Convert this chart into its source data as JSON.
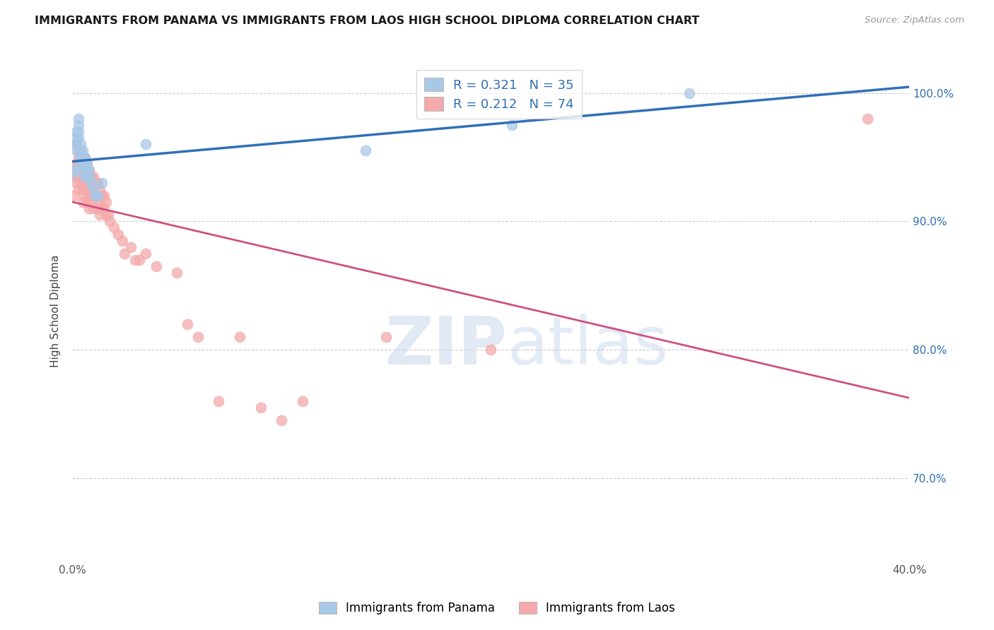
{
  "title": "IMMIGRANTS FROM PANAMA VS IMMIGRANTS FROM LAOS HIGH SCHOOL DIPLOMA CORRELATION CHART",
  "source": "Source: ZipAtlas.com",
  "ylabel": "High School Diploma",
  "x_min": 0.0,
  "x_max": 0.4,
  "y_min": 0.635,
  "y_max": 1.025,
  "x_ticks": [
    0.0,
    0.05,
    0.1,
    0.15,
    0.2,
    0.25,
    0.3,
    0.35,
    0.4
  ],
  "x_tick_labels": [
    "0.0%",
    "",
    "",
    "",
    "",
    "",
    "",
    "",
    "40.0%"
  ],
  "y_ticks": [
    0.7,
    0.8,
    0.9,
    1.0
  ],
  "y_tick_labels": [
    "70.0%",
    "80.0%",
    "90.0%",
    "100.0%"
  ],
  "panama_R": 0.321,
  "panama_N": 35,
  "laos_R": 0.212,
  "laos_N": 74,
  "panama_color": "#a8c8e8",
  "laos_color": "#f4aaaa",
  "panama_line_color": "#3070b8",
  "laos_line_color": "#d05080",
  "watermark_zip": "ZIP",
  "watermark_atlas": "atlas",
  "panama_scatter_x": [
    0.001,
    0.001,
    0.002,
    0.002,
    0.002,
    0.002,
    0.003,
    0.003,
    0.003,
    0.003,
    0.004,
    0.004,
    0.004,
    0.004,
    0.005,
    0.005,
    0.005,
    0.006,
    0.006,
    0.006,
    0.006,
    0.007,
    0.007,
    0.007,
    0.008,
    0.008,
    0.009,
    0.01,
    0.011,
    0.012,
    0.014,
    0.035,
    0.14,
    0.21,
    0.295
  ],
  "panama_scatter_y": [
    0.94,
    0.938,
    0.97,
    0.965,
    0.96,
    0.955,
    0.98,
    0.975,
    0.97,
    0.965,
    0.96,
    0.955,
    0.95,
    0.945,
    0.955,
    0.95,
    0.945,
    0.95,
    0.945,
    0.94,
    0.935,
    0.945,
    0.94,
    0.935,
    0.94,
    0.935,
    0.93,
    0.925,
    0.92,
    0.92,
    0.93,
    0.96,
    0.955,
    0.975,
    1.0
  ],
  "laos_scatter_x": [
    0.001,
    0.001,
    0.002,
    0.002,
    0.002,
    0.003,
    0.003,
    0.003,
    0.003,
    0.003,
    0.003,
    0.004,
    0.004,
    0.004,
    0.004,
    0.005,
    0.005,
    0.005,
    0.005,
    0.005,
    0.006,
    0.006,
    0.006,
    0.006,
    0.007,
    0.007,
    0.007,
    0.007,
    0.008,
    0.008,
    0.008,
    0.008,
    0.009,
    0.009,
    0.009,
    0.01,
    0.01,
    0.01,
    0.011,
    0.011,
    0.012,
    0.012,
    0.012,
    0.013,
    0.013,
    0.013,
    0.014,
    0.014,
    0.015,
    0.015,
    0.016,
    0.016,
    0.017,
    0.018,
    0.02,
    0.022,
    0.024,
    0.025,
    0.028,
    0.03,
    0.032,
    0.035,
    0.04,
    0.05,
    0.055,
    0.06,
    0.07,
    0.08,
    0.09,
    0.1,
    0.11,
    0.15,
    0.2,
    0.38
  ],
  "laos_scatter_y": [
    0.935,
    0.92,
    0.96,
    0.945,
    0.93,
    0.955,
    0.95,
    0.945,
    0.94,
    0.935,
    0.925,
    0.955,
    0.95,
    0.94,
    0.93,
    0.95,
    0.945,
    0.935,
    0.925,
    0.915,
    0.95,
    0.94,
    0.93,
    0.92,
    0.945,
    0.935,
    0.925,
    0.915,
    0.94,
    0.93,
    0.92,
    0.91,
    0.935,
    0.925,
    0.915,
    0.935,
    0.925,
    0.91,
    0.93,
    0.92,
    0.93,
    0.92,
    0.91,
    0.925,
    0.915,
    0.905,
    0.92,
    0.91,
    0.92,
    0.91,
    0.915,
    0.905,
    0.905,
    0.9,
    0.895,
    0.89,
    0.885,
    0.875,
    0.88,
    0.87,
    0.87,
    0.875,
    0.865,
    0.86,
    0.82,
    0.81,
    0.76,
    0.81,
    0.755,
    0.745,
    0.76,
    0.81,
    0.8,
    0.98
  ]
}
